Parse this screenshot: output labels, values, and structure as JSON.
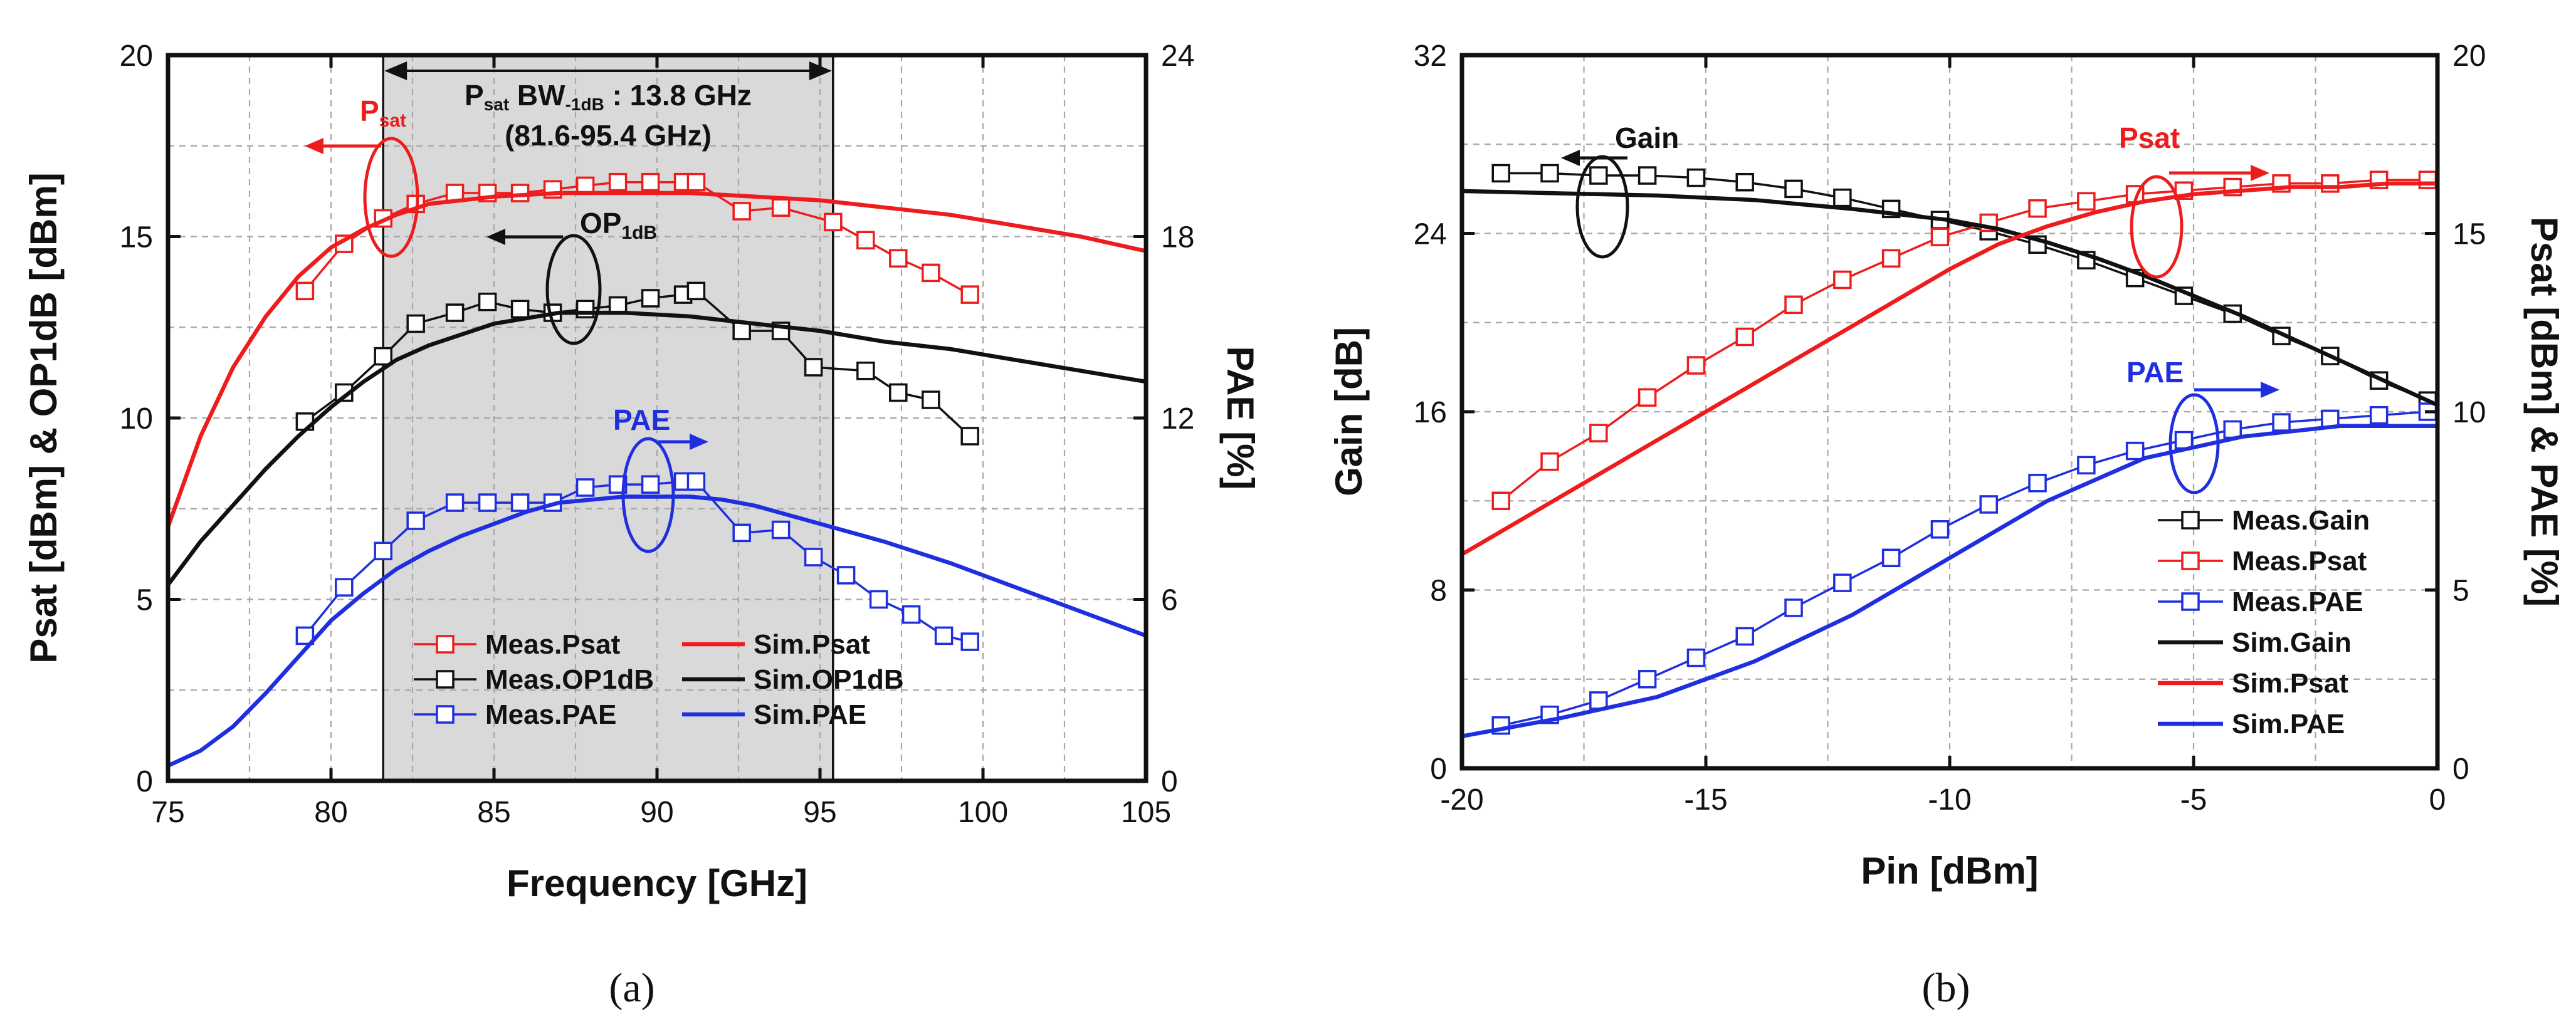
{
  "colors": {
    "red": "#ee1c1c",
    "black": "#111111",
    "blue": "#1f2fe0",
    "shade": "#d9d9d9",
    "grid": "#a8a8a8"
  },
  "chart_data": [
    {
      "id": "a",
      "type": "line",
      "caption": "(a)",
      "xlabel": "Frequency [GHz]",
      "ylabel_left": "Psat [dBm] & OP1dB [dBm]",
      "ylabel_right": "PAE [%]",
      "xlim": [
        75,
        105
      ],
      "ylim_left": [
        0,
        20
      ],
      "ylim_right": [
        0,
        24
      ],
      "xticks": [
        "75",
        "80",
        "85",
        "90",
        "95",
        "100",
        "105"
      ],
      "yticks_left": [
        "0",
        "5",
        "10",
        "15",
        "20"
      ],
      "yticks_right": [
        "0",
        "6",
        "12",
        "18",
        "24"
      ],
      "bandwidth": {
        "from": 81.6,
        "to": 95.4,
        "label_main": "P",
        "label_sub1": "sat",
        "label_mid": " BW",
        "label_sub2": "-1dB",
        "label_tail": " : 13.8 GHz",
        "range_label": "(81.6-95.4 GHz)"
      },
      "annotations": {
        "psat": {
          "text": "P",
          "sub": "sat"
        },
        "op1db": {
          "text": "OP",
          "sub": "1dB"
        },
        "pae": {
          "text": "PAE"
        }
      },
      "series": [
        {
          "name": "Meas.Psat",
          "kind": "meas",
          "color": "red",
          "axis": "left",
          "x": [
            79.2,
            80.4,
            81.6,
            82.6,
            83.8,
            84.8,
            85.8,
            86.8,
            87.8,
            88.8,
            89.8,
            90.8,
            91.2,
            92.6,
            93.8,
            95.4,
            96.4,
            97.4,
            98.4,
            99.6
          ],
          "y": [
            13.5,
            14.8,
            15.5,
            15.9,
            16.2,
            16.2,
            16.2,
            16.3,
            16.4,
            16.5,
            16.5,
            16.5,
            16.5,
            15.7,
            15.8,
            15.4,
            14.9,
            14.4,
            14.0,
            13.4
          ]
        },
        {
          "name": "Meas.OP1dB",
          "kind": "meas",
          "color": "black",
          "axis": "left",
          "x": [
            79.2,
            80.4,
            81.6,
            82.6,
            83.8,
            84.8,
            85.8,
            86.8,
            87.8,
            88.8,
            89.8,
            90.8,
            91.2,
            92.6,
            93.8,
            94.8,
            96.4,
            97.4,
            98.4,
            99.6
          ],
          "y": [
            9.9,
            10.7,
            11.7,
            12.6,
            12.9,
            13.2,
            13.0,
            12.9,
            13.0,
            13.1,
            13.3,
            13.4,
            13.5,
            12.4,
            12.4,
            11.4,
            11.3,
            10.7,
            10.5,
            9.5
          ]
        },
        {
          "name": "Meas.PAE",
          "kind": "meas",
          "color": "blue",
          "axis": "right",
          "x": [
            79.2,
            80.4,
            81.6,
            82.6,
            83.8,
            84.8,
            85.8,
            86.8,
            87.8,
            88.8,
            89.8,
            90.8,
            91.2,
            92.6,
            93.8,
            94.8,
            95.8,
            96.8,
            97.8,
            98.8,
            99.6
          ],
          "y": [
            4.8,
            6.4,
            7.6,
            8.6,
            9.2,
            9.2,
            9.2,
            9.2,
            9.7,
            9.8,
            9.8,
            9.9,
            9.9,
            8.2,
            8.3,
            7.4,
            6.8,
            6.0,
            5.5,
            4.8,
            4.6
          ]
        },
        {
          "name": "Sim.Psat",
          "kind": "sim",
          "color": "red",
          "axis": "left",
          "x": [
            75,
            76,
            77,
            78,
            79,
            80,
            81,
            82,
            83,
            85,
            87,
            89,
            91,
            93,
            95,
            97,
            99,
            101,
            103,
            105
          ],
          "y": [
            7.0,
            9.5,
            11.4,
            12.8,
            13.9,
            14.7,
            15.2,
            15.6,
            15.9,
            16.1,
            16.2,
            16.2,
            16.2,
            16.1,
            16.0,
            15.8,
            15.6,
            15.3,
            15.0,
            14.6
          ]
        },
        {
          "name": "Sim.OP1dB",
          "kind": "sim",
          "color": "black",
          "axis": "left",
          "x": [
            75,
            76,
            77,
            78,
            79,
            80,
            81,
            82,
            83,
            85,
            87,
            89,
            91,
            93,
            95,
            97,
            99,
            101,
            103,
            105
          ],
          "y": [
            5.4,
            6.6,
            7.6,
            8.6,
            9.5,
            10.3,
            11.0,
            11.6,
            12.0,
            12.6,
            12.9,
            12.9,
            12.8,
            12.6,
            12.4,
            12.1,
            11.9,
            11.6,
            11.3,
            11.0
          ]
        },
        {
          "name": "Sim.PAE",
          "kind": "sim",
          "color": "blue",
          "axis": "right",
          "x": [
            75,
            76,
            77,
            78,
            79,
            80,
            81,
            82,
            83,
            84,
            85,
            86,
            87,
            88,
            89,
            90,
            91,
            92,
            93,
            95,
            97,
            99,
            101,
            103,
            105
          ],
          "y": [
            0.5,
            1.0,
            1.8,
            2.9,
            4.1,
            5.3,
            6.2,
            7.0,
            7.6,
            8.1,
            8.5,
            8.9,
            9.2,
            9.3,
            9.4,
            9.4,
            9.4,
            9.3,
            9.1,
            8.5,
            7.9,
            7.2,
            6.4,
            5.6,
            4.8
          ]
        }
      ],
      "legend": {
        "columns": 2,
        "order": [
          "Meas.Psat",
          "Sim.Psat",
          "Meas.OP1dB",
          "Sim.OP1dB",
          "Meas.PAE",
          "Sim.PAE"
        ]
      }
    },
    {
      "id": "b",
      "type": "line",
      "caption": "(b)",
      "xlabel": "Pin [dBm]",
      "ylabel_left": "Gain [dB]",
      "ylabel_right": "Psat [dBm] & PAE [%]",
      "xlim": [
        -20,
        0
      ],
      "ylim_left": [
        0,
        32
      ],
      "ylim_right": [
        0,
        20
      ],
      "xticks": [
        "-20",
        "-15",
        "-10",
        "-5",
        "0"
      ],
      "yticks_left": [
        "0",
        "8",
        "16",
        "24",
        "32"
      ],
      "yticks_right": [
        "0",
        "5",
        "10",
        "15",
        "20"
      ],
      "annotations": {
        "gain": {
          "text": "Gain"
        },
        "psat": {
          "text": "Psat"
        },
        "pae": {
          "text": "PAE"
        }
      },
      "series": [
        {
          "name": "Meas.Gain",
          "kind": "meas",
          "color": "black",
          "axis": "left",
          "x": [
            -19.2,
            -18.2,
            -17.2,
            -16.2,
            -15.2,
            -14.2,
            -13.2,
            -12.2,
            -11.2,
            -10.2,
            -9.2,
            -8.2,
            -7.2,
            -6.2,
            -5.2,
            -4.2,
            -3.2,
            -2.2,
            -1.2,
            -0.2
          ],
          "y": [
            26.7,
            26.7,
            26.6,
            26.6,
            26.5,
            26.3,
            26.0,
            25.6,
            25.1,
            24.6,
            24.1,
            23.5,
            22.8,
            22.0,
            21.2,
            20.4,
            19.4,
            18.5,
            17.4,
            16.5
          ]
        },
        {
          "name": "Meas.Psat",
          "kind": "meas",
          "color": "red",
          "axis": "right",
          "x": [
            -19.2,
            -18.2,
            -17.2,
            -16.2,
            -15.2,
            -14.2,
            -13.2,
            -12.2,
            -11.2,
            -10.2,
            -9.2,
            -8.2,
            -7.2,
            -6.2,
            -5.2,
            -4.2,
            -3.2,
            -2.2,
            -1.2,
            -0.2
          ],
          "y": [
            7.5,
            8.6,
            9.4,
            10.4,
            11.3,
            12.1,
            13.0,
            13.7,
            14.3,
            14.9,
            15.3,
            15.7,
            15.9,
            16.1,
            16.2,
            16.3,
            16.4,
            16.4,
            16.5,
            16.5
          ]
        },
        {
          "name": "Meas.PAE",
          "kind": "meas",
          "color": "blue",
          "axis": "right",
          "x": [
            -19.2,
            -18.2,
            -17.2,
            -16.2,
            -15.2,
            -14.2,
            -13.2,
            -12.2,
            -11.2,
            -10.2,
            -9.2,
            -8.2,
            -7.2,
            -6.2,
            -5.2,
            -4.2,
            -3.2,
            -2.2,
            -1.2,
            -0.2
          ],
          "y": [
            1.2,
            1.5,
            1.9,
            2.5,
            3.1,
            3.7,
            4.5,
            5.2,
            5.9,
            6.7,
            7.4,
            8.0,
            8.5,
            8.9,
            9.2,
            9.5,
            9.7,
            9.8,
            9.9,
            10.0
          ]
        },
        {
          "name": "Sim.Gain",
          "kind": "sim",
          "color": "black",
          "axis": "left",
          "x": [
            -20,
            -18,
            -16,
            -14,
            -12,
            -10,
            -9,
            -8,
            -7,
            -6,
            -5,
            -4,
            -3,
            -2,
            -1,
            0
          ],
          "y": [
            25.9,
            25.8,
            25.7,
            25.5,
            25.1,
            24.6,
            24.2,
            23.6,
            22.9,
            22.1,
            21.2,
            20.3,
            19.3,
            18.3,
            17.3,
            16.3
          ]
        },
        {
          "name": "Sim.Psat",
          "kind": "sim",
          "color": "red",
          "axis": "right",
          "x": [
            -20,
            -18,
            -16,
            -14,
            -12,
            -10,
            -9,
            -8,
            -7,
            -6,
            -5,
            -4,
            -3,
            -2,
            -1,
            0
          ],
          "y": [
            6.0,
            7.6,
            9.2,
            10.8,
            12.4,
            14.0,
            14.7,
            15.2,
            15.6,
            15.9,
            16.1,
            16.2,
            16.3,
            16.3,
            16.4,
            16.4
          ]
        },
        {
          "name": "Sim.PAE",
          "kind": "sim",
          "color": "blue",
          "axis": "right",
          "x": [
            -20,
            -18,
            -16,
            -14,
            -12,
            -10,
            -8,
            -6,
            -4,
            -2,
            -1,
            0
          ],
          "y": [
            0.9,
            1.4,
            2.0,
            3.0,
            4.3,
            5.9,
            7.5,
            8.7,
            9.3,
            9.6,
            9.6,
            9.6
          ]
        }
      ],
      "legend": {
        "columns": 1,
        "order": [
          "Meas.Gain",
          "Meas.Psat",
          "Meas.PAE",
          "Sim.Gain",
          "Sim.Psat",
          "Sim.PAE"
        ]
      }
    }
  ]
}
